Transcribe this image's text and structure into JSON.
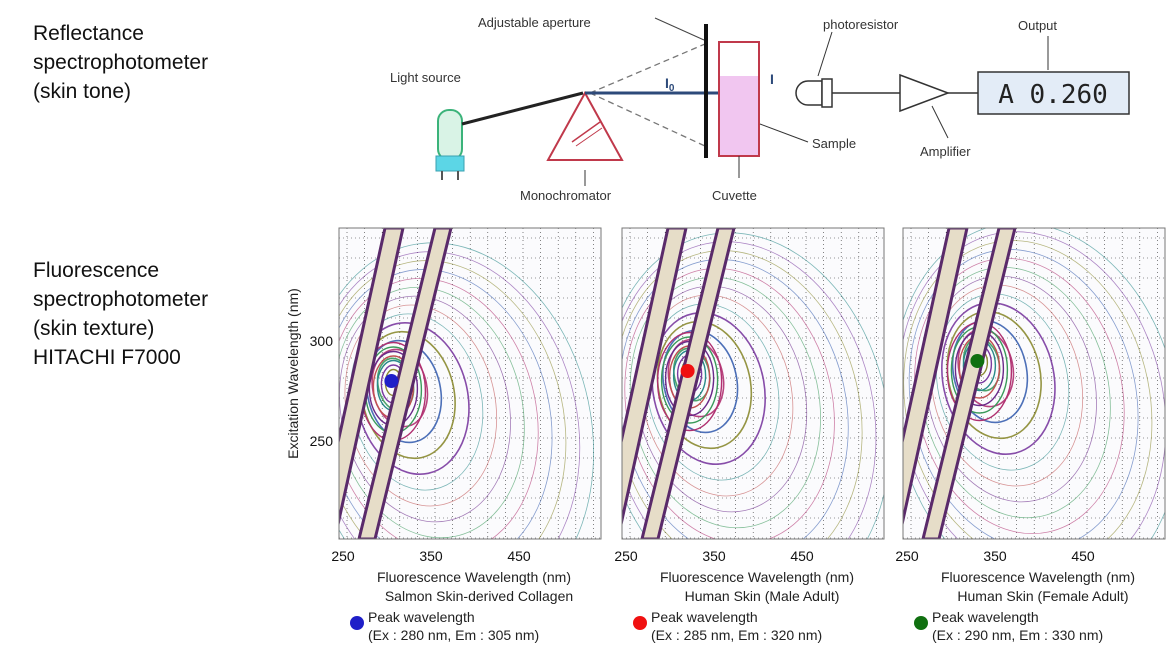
{
  "labels": {
    "reflectance": [
      "Reflectance",
      "spectrophotometer",
      "(skin tone)"
    ],
    "fluorescence": [
      "Fluorescence",
      "spectrophotometer",
      "(skin texture)",
      "HITACHI F7000"
    ]
  },
  "diagram": {
    "light_source": "Light source",
    "adjustable_aperture": "Adjustable aperture",
    "monochromator": "Monochromator",
    "i0": "I",
    "i0_sub": "0",
    "i": "I",
    "cuvette": "Cuvette",
    "sample": "Sample",
    "photoresistor": "photoresistor",
    "amplifier": "Amplifier",
    "output": "Output",
    "display": "A 0.260"
  },
  "colors": {
    "mono": "#c0394b",
    "cuvette_border": "#c0394b",
    "sample_fill": "#f1c6f0",
    "beam": "#2d4a7a",
    "source_body": "#d9f3e6",
    "source_base": "#5cd6e6",
    "display_fill": "#e3ecf7",
    "band": "#e6ddc8"
  },
  "chart_data": [
    {
      "type": "contour",
      "xlabel": "Fluorescence Wavelength (nm)",
      "ylabel": "Excitation Wavelength (nm)",
      "xticks": [
        "250",
        "350",
        "450"
      ],
      "yticks": [
        "300",
        "250"
      ],
      "caption": "Salmon Skin-derived  Collagen",
      "peak_label": "Peak wavelength",
      "peak_values": "(Ex : 280 nm, Em : 305 nm)",
      "peak": {
        "ex": 280,
        "em": 305
      },
      "marker_color": "#1f1fc8"
    },
    {
      "type": "contour",
      "xlabel": "Fluorescence Wavelength (nm)",
      "xticks": [
        "250",
        "350",
        "450"
      ],
      "caption": "Human Skin (Male Adult)",
      "peak_label": "Peak wavelength",
      "peak_values": "(Ex : 285 nm, Em : 320 nm)",
      "peak": {
        "ex": 285,
        "em": 320
      },
      "marker_color": "#f01010"
    },
    {
      "type": "contour",
      "xlabel": "Fluorescence Wavelength (nm)",
      "xticks": [
        "250",
        "350",
        "450"
      ],
      "caption": "Human Skin (Female Adult)",
      "peak_label": "Peak wavelength",
      "peak_values": "(Ex : 290 nm, Em : 330 nm)",
      "peak": {
        "ex": 290,
        "em": 330
      },
      "marker_color": "#107010"
    }
  ]
}
